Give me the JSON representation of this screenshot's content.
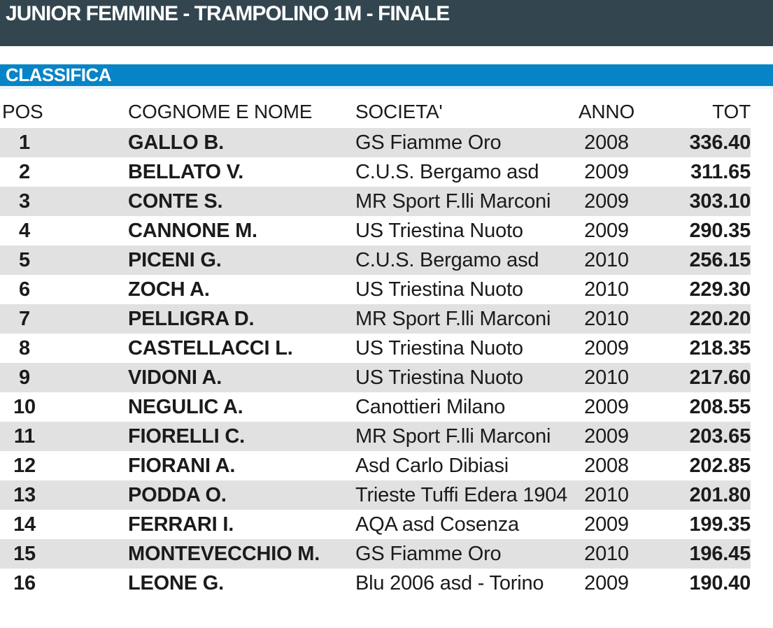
{
  "title_bar": {
    "title": "JUNIOR FEMMINE - TRAMPOLINO 1M - FINALE"
  },
  "section_bar": {
    "label": "CLASSIFICA"
  },
  "colors": {
    "title_bar_bg": "#334650",
    "section_bar_bg": "#0784c6",
    "row_stripe": "#e1e1e1",
    "text": "#1b1b1b",
    "header_text": "#ffffff"
  },
  "table": {
    "columns": [
      "POS",
      "COGNOME E NOME",
      "SOCIETA'",
      "ANNO",
      "TOT"
    ],
    "rows": [
      {
        "pos": "1",
        "name": "GALLO B.",
        "society": "GS Fiamme Oro",
        "year": "2008",
        "tot": "336.40"
      },
      {
        "pos": "2",
        "name": "BELLATO V.",
        "society": "C.U.S. Bergamo asd",
        "year": "2009",
        "tot": "311.65"
      },
      {
        "pos": "3",
        "name": "CONTE S.",
        "society": "MR Sport F.lli Marconi",
        "year": "2009",
        "tot": "303.10"
      },
      {
        "pos": "4",
        "name": "CANNONE M.",
        "society": "US Triestina Nuoto",
        "year": "2009",
        "tot": "290.35"
      },
      {
        "pos": "5",
        "name": "PICENI G.",
        "society": "C.U.S. Bergamo asd",
        "year": "2010",
        "tot": "256.15"
      },
      {
        "pos": "6",
        "name": "ZOCH A.",
        "society": "US Triestina Nuoto",
        "year": "2010",
        "tot": "229.30"
      },
      {
        "pos": "7",
        "name": "PELLIGRA D.",
        "society": "MR Sport F.lli Marconi",
        "year": "2010",
        "tot": "220.20"
      },
      {
        "pos": "8",
        "name": "CASTELLACCI L.",
        "society": "US Triestina Nuoto",
        "year": "2009",
        "tot": "218.35"
      },
      {
        "pos": "9",
        "name": "VIDONI A.",
        "society": "US Triestina Nuoto",
        "year": "2010",
        "tot": "217.60"
      },
      {
        "pos": "10",
        "name": "NEGULIC A.",
        "society": "Canottieri Milano",
        "year": "2009",
        "tot": "208.55"
      },
      {
        "pos": "11",
        "name": "FIORELLI C.",
        "society": "MR Sport F.lli Marconi",
        "year": "2009",
        "tot": "203.65"
      },
      {
        "pos": "12",
        "name": "FIORANI A.",
        "society": "Asd Carlo Dibiasi",
        "year": "2008",
        "tot": "202.85"
      },
      {
        "pos": "13",
        "name": "PODDA O.",
        "society": "Trieste Tuffi Edera 1904",
        "year": "2010",
        "tot": "201.80"
      },
      {
        "pos": "14",
        "name": "FERRARI I.",
        "society": "AQA asd Cosenza",
        "year": "2009",
        "tot": "199.35"
      },
      {
        "pos": "15",
        "name": "MONTEVECCHIO M.",
        "society": "GS Fiamme Oro",
        "year": "2010",
        "tot": "196.45"
      },
      {
        "pos": "16",
        "name": "LEONE G.",
        "society": "Blu 2006 asd - Torino",
        "year": "2009",
        "tot": "190.40"
      }
    ]
  }
}
